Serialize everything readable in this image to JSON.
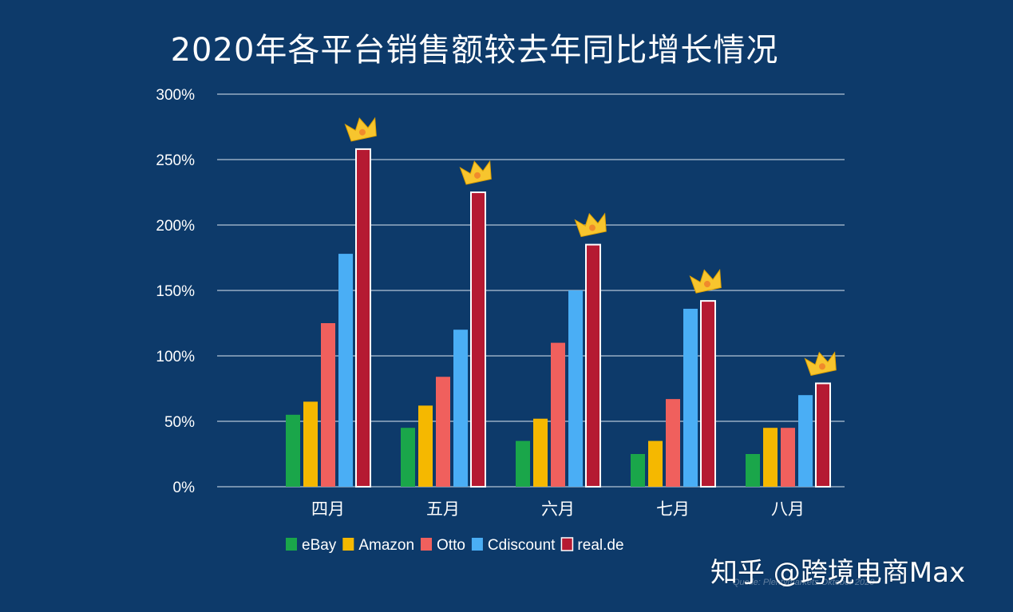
{
  "title": "2020年各平台销售额较去年同比增长情况",
  "watermark": "知乎 @跨境电商Max",
  "source": "Quelle: Plentymarkets Oktober 2020",
  "colors": {
    "background": "#0d3a6a",
    "ebay": "#1aa64a",
    "amazon": "#f5b800",
    "otto": "#f0605d",
    "cdiscount": "#4aaef5",
    "realde": "#b51a32",
    "crown": "#f7c52e"
  },
  "chart_data": {
    "type": "bar",
    "title": "2020年各平台销售额较去年同比增长情况",
    "categories": [
      "四月",
      "五月",
      "六月",
      "七月",
      "八月"
    ],
    "series": [
      {
        "name": "eBay",
        "values": [
          55,
          45,
          35,
          25,
          25
        ]
      },
      {
        "name": "Amazon",
        "values": [
          65,
          62,
          52,
          35,
          45
        ]
      },
      {
        "name": "Otto",
        "values": [
          125,
          84,
          110,
          67,
          45
        ]
      },
      {
        "name": "Cdiscount",
        "values": [
          178,
          120,
          150,
          136,
          70
        ]
      },
      {
        "name": "real.de",
        "values": [
          258,
          225,
          185,
          142,
          79
        ]
      }
    ],
    "ylim": [
      0,
      300
    ],
    "yticks": [
      0,
      50,
      100,
      150,
      200,
      250,
      300
    ],
    "ytick_labels": [
      "0%",
      "50%",
      "100%",
      "150%",
      "200%",
      "250%",
      "300%"
    ],
    "grid": true,
    "legend_position": "bottom",
    "highlight_series": "real.de",
    "highlight_icon": "crown-icon"
  }
}
